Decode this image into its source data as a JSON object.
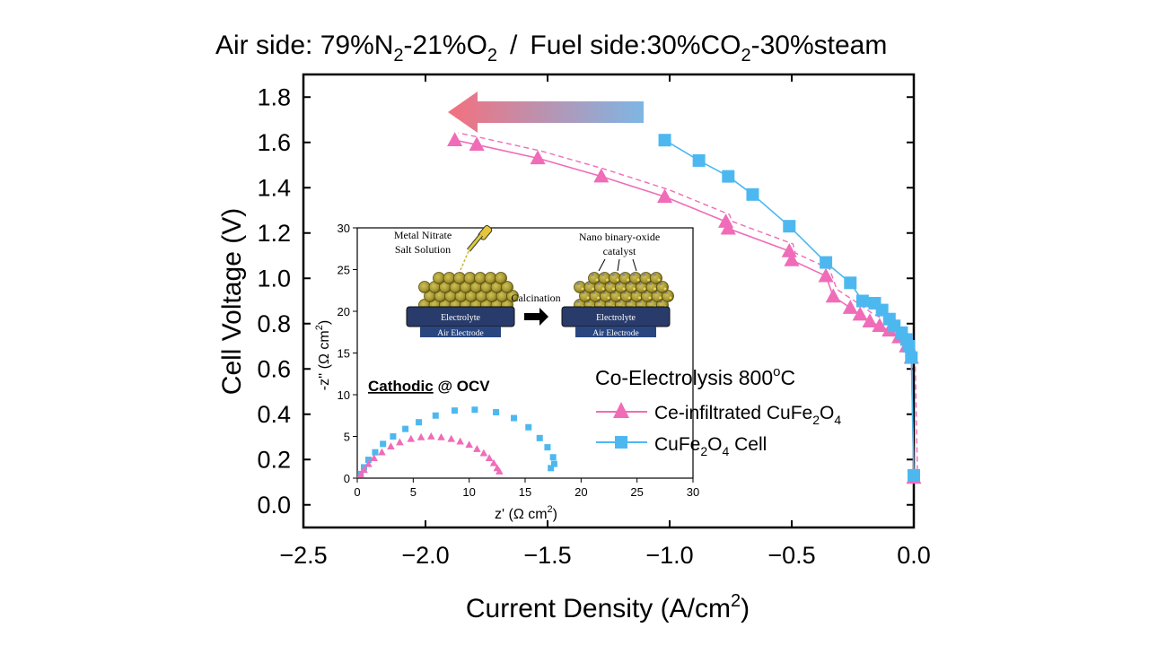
{
  "chart_data": [
    {
      "type": "line",
      "title": "Air side: 79%N2-21%O2  /  Fuel side:30%CO2-30%steam",
      "title_parts": {
        "air_prefix": "Air side: 79%N",
        "air_n_sub": "2",
        "air_mid": "-21%O",
        "air_o_sub": "2",
        "separator": "/",
        "fuel_prefix": "Fuel side:30%CO",
        "fuel_co_sub": "2",
        "fuel_suffix": "-30%steam"
      },
      "xlabel": "Current Density (A/cm2)",
      "xlabel_parts": {
        "main": "Current Density (A/cm",
        "sup": "2",
        "end": ")"
      },
      "ylabel": "Cell Voltage (V)",
      "xlim": [
        -2.5,
        0.0
      ],
      "ylim": [
        -0.1,
        1.9
      ],
      "x_ticks": [
        -2.5,
        -2.0,
        -1.5,
        -1.0,
        -0.5,
        0.0
      ],
      "x_tick_labels": [
        "−2.5",
        "−2.0",
        "−1.5",
        "−1.0",
        "−0.5",
        "0.0"
      ],
      "y_ticks": [
        0.0,
        0.2,
        0.4,
        0.6,
        0.8,
        1.0,
        1.2,
        1.4,
        1.6,
        1.8
      ],
      "y_tick_labels": [
        "0.0",
        "0.2",
        "0.4",
        "0.6",
        "0.8",
        "1.0",
        "1.2",
        "1.4",
        "1.6",
        "1.8"
      ],
      "grid": false,
      "legend_heading": "Co-Electrolysis 800oC",
      "legend_heading_parts": {
        "main": "Co-Electrolysis 800",
        "sup": "o",
        "end": "C"
      },
      "legend_placement": "center-right",
      "arrow_direction": "left",
      "series": [
        {
          "name": "Ce-infiltrated CuFe2O4",
          "name_parts": {
            "a": "Ce-infiltrated CuFe",
            "s1": "2",
            "b": "O",
            "s2": "4"
          },
          "color": "#F06CB8",
          "marker": "triangle",
          "x": [
            0.0,
            -0.01,
            -0.03,
            -0.06,
            -0.1,
            -0.14,
            -0.18,
            -0.22,
            -0.26,
            -0.33,
            -0.36,
            -0.5,
            -0.51,
            -0.76,
            -0.77,
            -1.02,
            -1.28,
            -1.54,
            -1.79,
            -1.88
          ],
          "y": [
            0.12,
            0.65,
            0.7,
            0.74,
            0.77,
            0.79,
            0.81,
            0.84,
            0.87,
            0.92,
            1.01,
            1.08,
            1.12,
            1.22,
            1.25,
            1.36,
            1.45,
            1.53,
            1.59,
            1.61
          ]
        },
        {
          "name": "CuFe2O4 Cell",
          "name_parts": {
            "a": "CuFe",
            "s1": "2",
            "b": "O",
            "s2": "4",
            "c": " Cell"
          },
          "color": "#4DB8F0",
          "marker": "square",
          "x": [
            0.0,
            -0.01,
            -0.02,
            -0.03,
            -0.05,
            -0.08,
            -0.1,
            -0.13,
            -0.16,
            -0.21,
            -0.26,
            -0.36,
            -0.51,
            -0.66,
            -0.76,
            -0.88,
            -1.02
          ],
          "y": [
            0.13,
            0.65,
            0.7,
            0.73,
            0.76,
            0.79,
            0.82,
            0.86,
            0.89,
            0.9,
            0.98,
            1.07,
            1.23,
            1.37,
            1.45,
            1.52,
            1.61
          ]
        }
      ]
    },
    {
      "type": "scatter",
      "xlabel": "z' (Ω cm2)",
      "xlabel_parts": {
        "main": "z' (Ω cm",
        "sup": "2",
        "end": ")"
      },
      "ylabel": "-z'' (Ω cm2)",
      "ylabel_parts": {
        "main": "-z'' (Ω cm",
        "sup": "2",
        "end": ")"
      },
      "xlim": [
        0,
        30
      ],
      "ylim": [
        0,
        30
      ],
      "x_ticks": [
        0,
        5,
        10,
        15,
        20,
        25,
        30
      ],
      "x_tick_labels": [
        "0",
        "5",
        "10",
        "15",
        "20",
        "25",
        "30"
      ],
      "y_ticks": [
        0,
        5,
        10,
        15,
        20,
        25,
        30
      ],
      "y_tick_labels": [
        "0",
        "5",
        "10",
        "15",
        "20",
        "25",
        "30"
      ],
      "annotation": {
        "underlined": "Cathodic",
        "rest": " @ OCV"
      },
      "series": [
        {
          "color": "#4DB8F0",
          "marker": "square",
          "x": [
            0.3,
            0.6,
            1.0,
            1.6,
            2.3,
            3.2,
            4.3,
            5.5,
            7.0,
            8.7,
            10.5,
            12.4,
            14.0,
            15.3,
            16.3,
            17.0,
            17.5,
            17.6,
            17.3
          ],
          "y": [
            0.5,
            1.3,
            2.2,
            3.1,
            4.1,
            5.0,
            5.9,
            6.7,
            7.5,
            8.1,
            8.2,
            7.9,
            7.2,
            6.1,
            4.8,
            3.7,
            2.5,
            1.7,
            1.2
          ]
        },
        {
          "color": "#F06CB8",
          "marker": "triangle",
          "x": [
            0.3,
            0.6,
            1.0,
            1.5,
            2.2,
            3.0,
            3.8,
            4.8,
            5.7,
            6.6,
            7.5,
            8.4,
            9.2,
            10.0,
            10.7,
            11.3,
            11.8,
            12.2,
            12.5,
            12.7
          ],
          "y": [
            0.4,
            1.0,
            1.7,
            2.4,
            3.1,
            3.8,
            4.3,
            4.7,
            4.9,
            5.0,
            4.9,
            4.7,
            4.4,
            4.0,
            3.5,
            3.0,
            2.4,
            1.8,
            1.2,
            0.8
          ]
        }
      ]
    }
  ],
  "schematic": {
    "before": {
      "label_line1": "Metal Nitrate",
      "label_line2": "Salt Solution",
      "electrolyte_label": "Electrolyte",
      "air_electrode_label": "Air Electrode"
    },
    "process_label": "Calcination",
    "after": {
      "label_line1": "Nano binary-oxide",
      "label_line2": "catalyst",
      "electrolyte_label": "Electrolyte",
      "air_electrode_label": "Air Electrode"
    }
  }
}
